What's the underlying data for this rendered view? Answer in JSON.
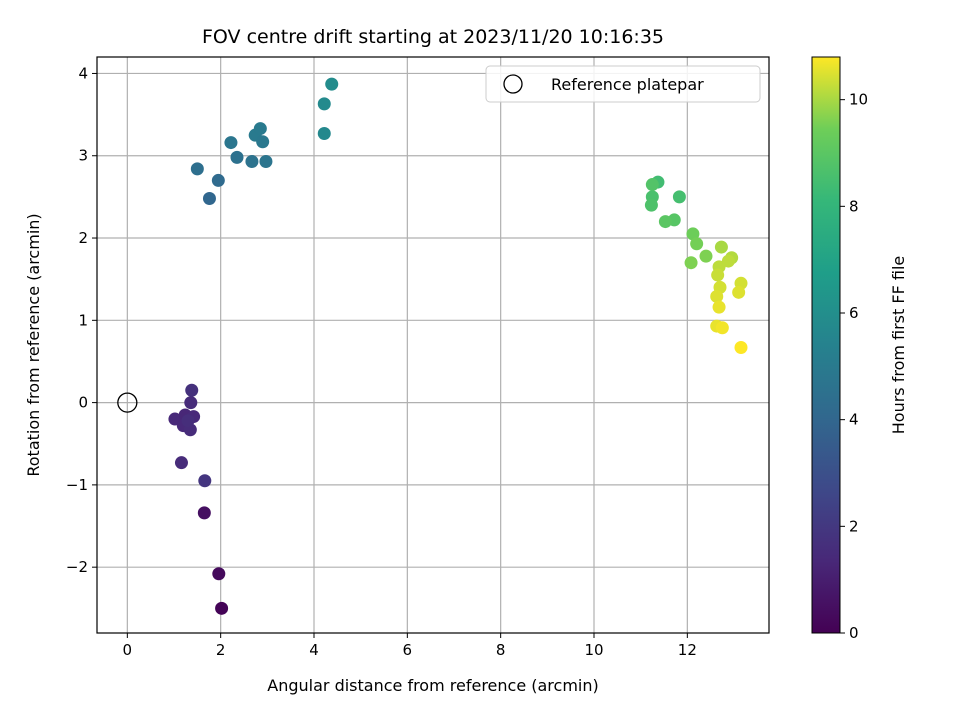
{
  "chart_data": {
    "type": "scatter",
    "title": "FOV centre drift starting at 2023/11/20 10:16:35",
    "xlabel": "Angular distance from reference (arcmin)",
    "ylabel": "Rotation from reference (arcmin)",
    "xlim": [
      -0.65,
      13.75
    ],
    "ylim": [
      -2.8,
      4.2
    ],
    "xticks": [
      0,
      2,
      4,
      6,
      8,
      10,
      12
    ],
    "yticks": [
      -2,
      -1,
      0,
      1,
      2,
      3,
      4
    ],
    "xtick_labels": [
      "0",
      "2",
      "4",
      "6",
      "8",
      "10",
      "12"
    ],
    "ytick_labels": [
      "−2",
      "−1",
      "0",
      "1",
      "2",
      "3",
      "4"
    ],
    "grid": true,
    "legend": {
      "position": "top-right",
      "entries": [
        {
          "label": "Reference platepar",
          "marker": "open-circle"
        }
      ]
    },
    "reference_point": {
      "x": 0,
      "y": 0
    },
    "colorbar": {
      "label": "Hours from first FF file",
      "colormap": "viridis",
      "range": [
        0,
        10.8
      ],
      "ticks": [
        0,
        2,
        4,
        6,
        8,
        10
      ],
      "tick_labels": [
        "0",
        "2",
        "4",
        "6",
        "8",
        "10"
      ]
    },
    "points": [
      {
        "x": 2.02,
        "y": -2.5,
        "c": 0.1
      },
      {
        "x": 1.96,
        "y": -2.08,
        "c": 0.3
      },
      {
        "x": 1.65,
        "y": -1.34,
        "c": 0.5
      },
      {
        "x": 1.66,
        "y": -0.95,
        "c": 1.9
      },
      {
        "x": 1.16,
        "y": -0.73,
        "c": 1.5
      },
      {
        "x": 1.38,
        "y": 0.15,
        "c": 1.7
      },
      {
        "x": 1.36,
        "y": 0.0,
        "c": 1.5
      },
      {
        "x": 1.02,
        "y": -0.2,
        "c": 1.4
      },
      {
        "x": 1.24,
        "y": -0.15,
        "c": 1.3
      },
      {
        "x": 1.42,
        "y": -0.17,
        "c": 1.4
      },
      {
        "x": 1.2,
        "y": -0.28,
        "c": 1.4
      },
      {
        "x": 1.35,
        "y": -0.33,
        "c": 1.5
      },
      {
        "x": 1.3,
        "y": -0.22,
        "c": 1.6
      },
      {
        "x": 1.76,
        "y": 2.48,
        "c": 4.0
      },
      {
        "x": 1.95,
        "y": 2.7,
        "c": 4.2
      },
      {
        "x": 1.5,
        "y": 2.84,
        "c": 4.4
      },
      {
        "x": 2.22,
        "y": 3.16,
        "c": 4.8
      },
      {
        "x": 2.35,
        "y": 2.98,
        "c": 4.5
      },
      {
        "x": 2.67,
        "y": 2.93,
        "c": 4.6
      },
      {
        "x": 2.97,
        "y": 2.93,
        "c": 4.7
      },
      {
        "x": 2.74,
        "y": 3.25,
        "c": 5.0
      },
      {
        "x": 2.85,
        "y": 3.33,
        "c": 5.0
      },
      {
        "x": 2.9,
        "y": 3.17,
        "c": 4.9
      },
      {
        "x": 4.22,
        "y": 3.27,
        "c": 5.7
      },
      {
        "x": 4.22,
        "y": 3.63,
        "c": 5.8
      },
      {
        "x": 4.38,
        "y": 3.87,
        "c": 5.9
      },
      {
        "x": 11.37,
        "y": 2.68,
        "c": 8.4
      },
      {
        "x": 11.25,
        "y": 2.65,
        "c": 8.8
      },
      {
        "x": 11.25,
        "y": 2.5,
        "c": 8.6
      },
      {
        "x": 11.23,
        "y": 2.4,
        "c": 8.7
      },
      {
        "x": 11.83,
        "y": 2.5,
        "c": 8.5
      },
      {
        "x": 11.72,
        "y": 2.22,
        "c": 8.9
      },
      {
        "x": 11.53,
        "y": 2.2,
        "c": 9.0
      },
      {
        "x": 12.12,
        "y": 2.05,
        "c": 9.4
      },
      {
        "x": 12.2,
        "y": 1.93,
        "c": 9.5
      },
      {
        "x": 12.4,
        "y": 1.78,
        "c": 9.6
      },
      {
        "x": 12.08,
        "y": 1.7,
        "c": 9.6
      },
      {
        "x": 12.73,
        "y": 1.89,
        "c": 10.0
      },
      {
        "x": 12.95,
        "y": 1.76,
        "c": 10.1
      },
      {
        "x": 12.88,
        "y": 1.72,
        "c": 10.2
      },
      {
        "x": 12.68,
        "y": 1.65,
        "c": 10.2
      },
      {
        "x": 12.65,
        "y": 1.55,
        "c": 10.3
      },
      {
        "x": 12.7,
        "y": 1.4,
        "c": 10.4
      },
      {
        "x": 13.15,
        "y": 1.45,
        "c": 10.4
      },
      {
        "x": 13.1,
        "y": 1.34,
        "c": 10.5
      },
      {
        "x": 12.63,
        "y": 1.29,
        "c": 10.5
      },
      {
        "x": 12.68,
        "y": 1.16,
        "c": 10.6
      },
      {
        "x": 12.63,
        "y": 0.93,
        "c": 10.6
      },
      {
        "x": 12.75,
        "y": 0.91,
        "c": 10.7
      },
      {
        "x": 13.15,
        "y": 0.67,
        "c": 10.8
      }
    ]
  }
}
